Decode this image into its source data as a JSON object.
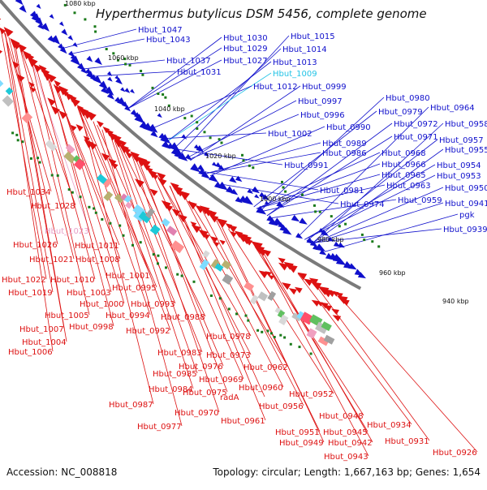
{
  "title": "Hyperthermus butylicus DSM 5456, complete genome",
  "accession_text": "Accession: NC_008818",
  "topology_text": "Topology: circular; Length: 1,667,163 bp; Genes: 1,654",
  "colors": {
    "plus_strand": "#1010cc",
    "minus_strand": "#dd1111",
    "highlight_plus": "#22c3e6",
    "highlight_minus": "#e8a0c8",
    "backbone": "#7a7a7a",
    "tick_green": "#1a7a1a"
  },
  "position_labels": [
    "1080 kbp",
    "1060 kbp",
    "1040 kbp",
    "1020 kbp",
    "1000 kbp",
    "980 kbp",
    "960 kbp",
    "940 kbp"
  ],
  "plus_genes": [
    "Hbut_1047",
    "Hbut_1043",
    "Hbut_1030",
    "Hbut_1029",
    "Hbut_1037",
    "Hbut_1027",
    "Hbut_1031",
    "Hbut_1015",
    "Hbut_1014",
    "Hbut_1013",
    "Hbut_1009",
    "Hbut_1012",
    "Hbut_0999",
    "Hbut_0997",
    "Hbut_0996",
    "Hbut_1002",
    "Hbut_0991",
    "Hbut_0980",
    "Hbut_0979",
    "Hbut_0964",
    "Hbut_0972",
    "Hbut_0958",
    "Hbut_0990",
    "Hbut_0971",
    "Hbut_0957",
    "Hbut_0989",
    "Hbut_0955",
    "Hbut_0986",
    "Hbut_0968",
    "Hbut_0966",
    "Hbut_0954",
    "Hbut_0965",
    "Hbut_0953",
    "Hbut_0963",
    "Hbut_0981",
    "Hbut_0950",
    "Hbut_0974",
    "Hbut_0959",
    "Hbut_0941",
    "pgk",
    "Hbut_0939"
  ],
  "minus_genes": [
    "Hbut_1034",
    "Hbut_1028",
    "Hbut_1023",
    "Hbut_1026",
    "Hbut_1011",
    "Hbut_1021",
    "Hbut_1008",
    "Hbut_1022",
    "Hbut_1010",
    "Hbut_1001",
    "Hbut_1019",
    "Hbut_1003",
    "Hbut_0995",
    "Hbut_1000",
    "Hbut_0993",
    "Hbut_1005",
    "Hbut_0994",
    "Hbut_0988",
    "Hbut_1007",
    "Hbut_0998",
    "Hbut_0992",
    "Hbut_1004",
    "Hbut_1006",
    "Hbut_0978",
    "Hbut_0983",
    "Hbut_0973",
    "Hbut_0976",
    "Hbut_0985",
    "Hbut_0969",
    "Hbut_0962",
    "Hbut_0984",
    "Hbut_0975",
    "Hbut_0960",
    "radA",
    "Hbut_0987",
    "Hbut_0952",
    "Hbut_0956",
    "Hbut_0970",
    "Hbut_0961",
    "Hbut_0948",
    "Hbut_0977",
    "Hbut_0951",
    "Hbut_0945",
    "Hbut_0934",
    "Hbut_0949",
    "Hbut_0942",
    "Hbut_0931",
    "Hbut_0943",
    "Hbut_0926"
  ],
  "highlighted": [
    "Hbut_1009",
    "Hbut_1023"
  ]
}
